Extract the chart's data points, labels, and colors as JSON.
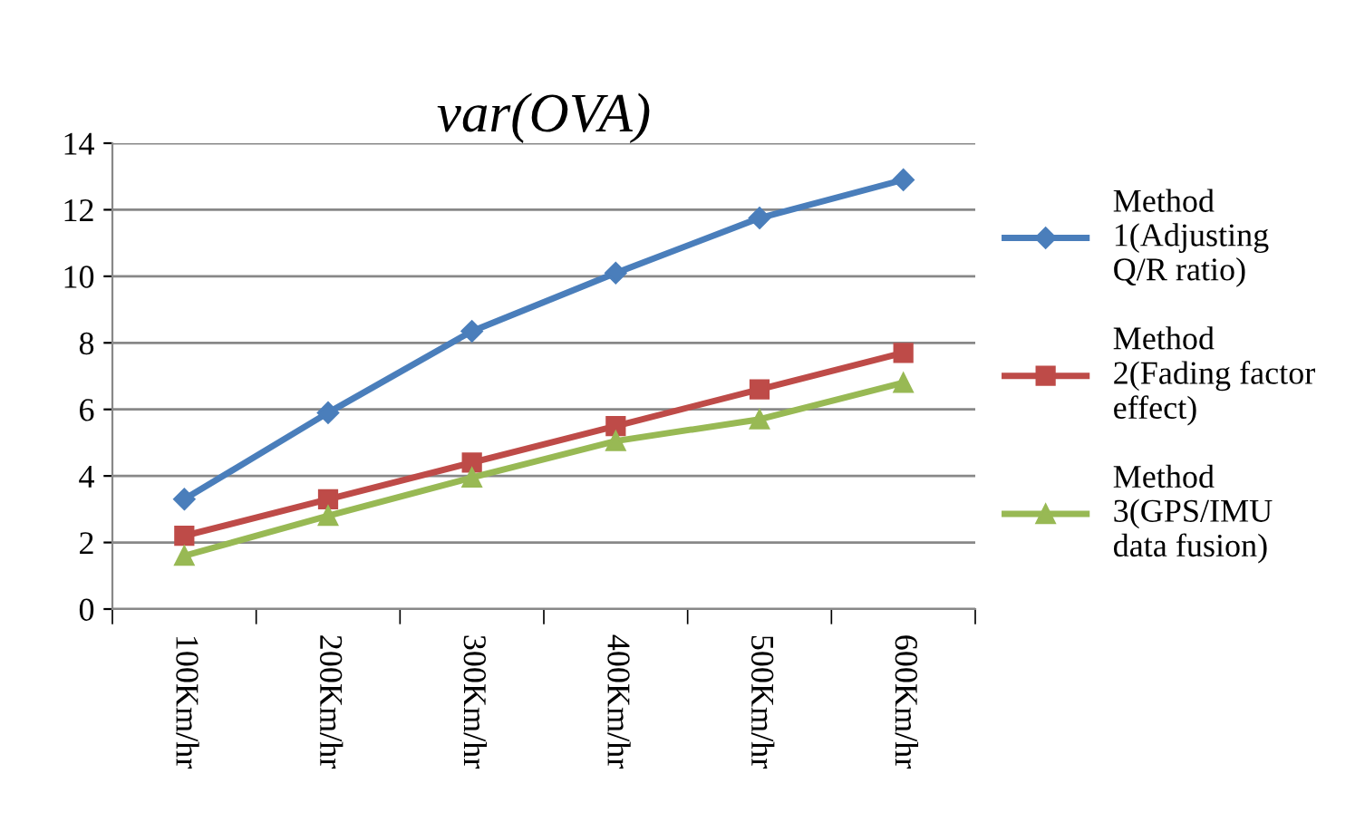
{
  "chart_data": {
    "type": "line",
    "title": "var(OVA)",
    "categories": [
      "100Km/hr",
      "200Km/hr",
      "300Km/hr",
      "400Km/hr",
      "500Km/hr",
      "600Km/hr"
    ],
    "series": [
      {
        "name": "Method\n1(Adjusting\nQ/R ratio)",
        "color": "#4a7ebb",
        "marker": "diamond",
        "values": [
          3.3,
          5.9,
          8.35,
          10.1,
          11.75,
          12.9
        ]
      },
      {
        "name": "Method\n2(Fading factor\neffect)",
        "color": "#be4b48",
        "marker": "square",
        "values": [
          2.2,
          3.3,
          4.4,
          5.5,
          6.6,
          7.7
        ]
      },
      {
        "name": "Method\n3(GPS/IMU\ndata fusion)",
        "color": "#98b954",
        "marker": "triangle",
        "values": [
          1.6,
          2.8,
          3.95,
          5.05,
          5.7,
          6.8
        ]
      }
    ],
    "ylim": [
      0,
      14
    ],
    "yticks": [
      0,
      2,
      4,
      6,
      8,
      10,
      12,
      14
    ],
    "grid": "y",
    "legend": "right",
    "line_style": "solid"
  }
}
